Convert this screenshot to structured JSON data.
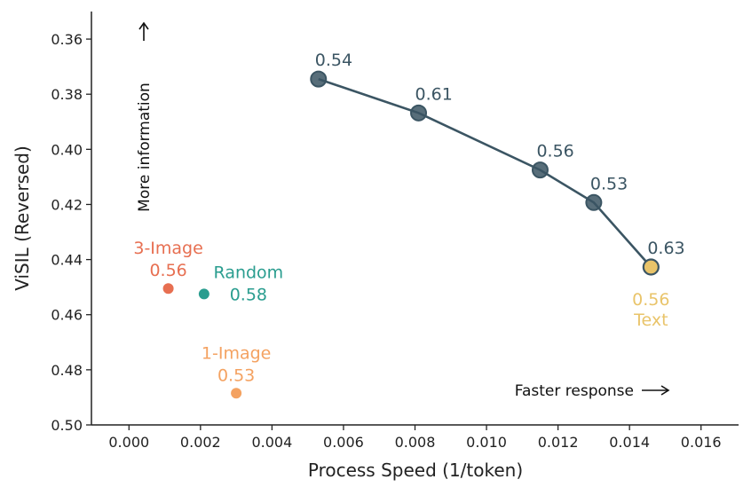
{
  "chart_data": {
    "type": "scatter",
    "title": "",
    "xlabel": "Process Speed (1/token)",
    "ylabel": "ViSIL (Reversed)",
    "xlim": [
      -0.00105,
      0.01705
    ],
    "ylim": [
      0.35,
      0.5
    ],
    "y_reversed": true,
    "grid": false,
    "x_ticks": [
      0.0,
      0.002,
      0.004,
      0.006,
      0.008,
      0.01,
      0.012,
      0.014,
      0.016
    ],
    "x_tick_labels": [
      "0.000",
      "0.002",
      "0.004",
      "0.006",
      "0.008",
      "0.010",
      "0.012",
      "0.014",
      "0.016"
    ],
    "y_ticks": [
      0.36,
      0.38,
      0.4,
      0.42,
      0.44,
      0.46,
      0.48,
      0.5
    ],
    "y_tick_labels": [
      "0.36",
      "0.38",
      "0.40",
      "0.42",
      "0.44",
      "0.46",
      "0.48",
      "0.50"
    ],
    "line_series": {
      "color": "#3b5563",
      "points": [
        {
          "x": 0.0053,
          "y": 0.3745,
          "label": "0.54"
        },
        {
          "x": 0.0081,
          "y": 0.3868,
          "label": "0.61"
        },
        {
          "x": 0.0115,
          "y": 0.4075,
          "label": "0.56"
        },
        {
          "x": 0.013,
          "y": 0.4193,
          "label": "0.53"
        },
        {
          "x": 0.0146,
          "y": 0.4427,
          "label": "0.63"
        }
      ]
    },
    "text_point": {
      "x": 0.0146,
      "y": 0.4427,
      "value_label": "0.56",
      "name": "Text",
      "color": "#e9c46a"
    },
    "baselines": [
      {
        "name": "3-Image",
        "value_label": "0.56",
        "x": 0.0011,
        "y": 0.4505,
        "color": "#e76f51"
      },
      {
        "name": "Random",
        "value_label": "0.58",
        "x": 0.0021,
        "y": 0.4525,
        "color": "#2a9d8f"
      },
      {
        "name": "1-Image",
        "value_label": "0.53",
        "x": 0.003,
        "y": 0.4885,
        "color": "#f4a261"
      }
    ],
    "annotations": {
      "more_information": "More information",
      "faster_response": "Faster response"
    }
  }
}
